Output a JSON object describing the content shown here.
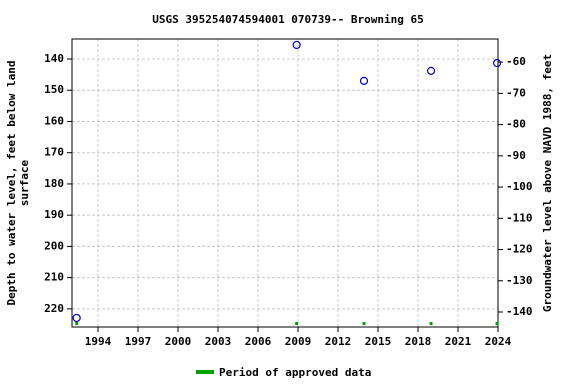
{
  "chart_data": {
    "type": "scatter",
    "title": "USGS 395254074594001 070739-- Browning 65",
    "ylabel": [
      "Depth to water level, feet below land",
      "surface"
    ],
    "y2label": "Groundwater level above NAVD 1988, feet",
    "xlim": [
      1992.05,
      2024
    ],
    "xticks": [
      1994,
      1997,
      2000,
      2003,
      2006,
      2009,
      2012,
      2015,
      2018,
      2021,
      2024
    ],
    "ylim": [
      133.6,
      225.8
    ],
    "yticks": [
      140,
      150,
      160,
      170,
      180,
      190,
      200,
      210,
      220
    ],
    "y2lim": [
      -52.6,
      -144.8
    ],
    "y2ticks": [
      -60,
      -70,
      -80,
      -90,
      -100,
      -110,
      -120,
      -130,
      -140
    ],
    "grid": true,
    "series": [
      {
        "name": "Depth to water",
        "color": "#0000cc",
        "x": [
          1992.4,
          2008.9,
          2013.95,
          2018.98,
          2023.93
        ],
        "values": [
          222.9,
          135.5,
          147.0,
          143.8,
          141.3
        ]
      }
    ],
    "approved": {
      "name": "Period of approved data",
      "color": "#00a000",
      "x": [
        1992.4,
        2008.9,
        2013.95,
        2018.98,
        2023.93
      ]
    }
  }
}
